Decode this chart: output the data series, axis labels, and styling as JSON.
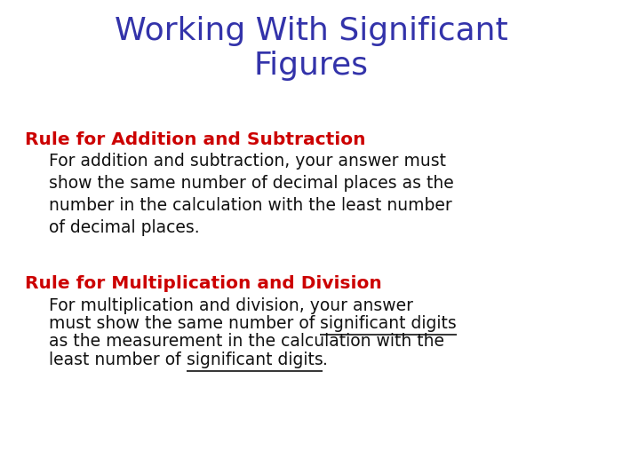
{
  "title": "Working With Significant\nFigures",
  "title_color": "#3333AA",
  "title_fontsize": 26,
  "background_color": "#FFFFFF",
  "rule1_heading": "Rule for Addition and Subtraction",
  "rule1_heading_color": "#CC0000",
  "rule1_heading_fontsize": 14.5,
  "rule1_body": "For addition and subtraction, your answer must\nshow the same number of decimal places as the\nnumber in the calculation with the least number\nof decimal places.",
  "rule1_body_color": "#111111",
  "rule1_body_fontsize": 13.5,
  "rule2_heading": "Rule for Multiplication and Division",
  "rule2_heading_color": "#CC0000",
  "rule2_heading_fontsize": 14.5,
  "rule2_body_color": "#111111",
  "rule2_body_fontsize": 13.5,
  "fig_width": 7.0,
  "fig_height": 5.25,
  "dpi": 100
}
